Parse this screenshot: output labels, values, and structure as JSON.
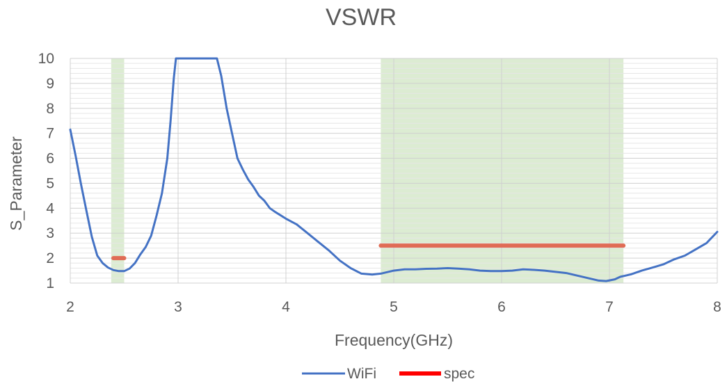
{
  "chart_data": {
    "type": "line",
    "title": "VSWR",
    "xlabel": "Frequency(GHz)",
    "ylabel": "S_Parameter",
    "xlim": [
      2,
      8
    ],
    "ylim": [
      1,
      10
    ],
    "x_ticks": [
      "2",
      "3",
      "4",
      "5",
      "6",
      "7",
      "8"
    ],
    "y_ticks": [
      "1",
      "2",
      "3",
      "4",
      "5",
      "6",
      "7",
      "8",
      "9",
      "10"
    ],
    "grid": true,
    "legend_position": "bottom",
    "shaded_bands": [
      [
        2.38,
        2.5
      ],
      [
        4.88,
        7.13
      ]
    ],
    "series": [
      {
        "name": "WiFi",
        "color": "#4472C4",
        "points": [
          [
            2.0,
            7.15
          ],
          [
            2.05,
            6.1
          ],
          [
            2.1,
            4.95
          ],
          [
            2.15,
            3.9
          ],
          [
            2.2,
            2.85
          ],
          [
            2.25,
            2.1
          ],
          [
            2.3,
            1.8
          ],
          [
            2.35,
            1.62
          ],
          [
            2.4,
            1.52
          ],
          [
            2.45,
            1.48
          ],
          [
            2.5,
            1.48
          ],
          [
            2.55,
            1.58
          ],
          [
            2.6,
            1.8
          ],
          [
            2.65,
            2.15
          ],
          [
            2.7,
            2.45
          ],
          [
            2.75,
            2.9
          ],
          [
            2.8,
            3.7
          ],
          [
            2.85,
            4.6
          ],
          [
            2.9,
            6.0
          ],
          [
            2.93,
            7.5
          ],
          [
            2.96,
            9.2
          ],
          [
            2.98,
            10.0
          ],
          [
            3.36,
            10.0
          ],
          [
            3.4,
            9.3
          ],
          [
            3.45,
            8.0
          ],
          [
            3.5,
            7.0
          ],
          [
            3.55,
            6.0
          ],
          [
            3.6,
            5.55
          ],
          [
            3.65,
            5.15
          ],
          [
            3.7,
            4.85
          ],
          [
            3.75,
            4.5
          ],
          [
            3.8,
            4.3
          ],
          [
            3.85,
            4.0
          ],
          [
            3.9,
            3.85
          ],
          [
            4.0,
            3.58
          ],
          [
            4.1,
            3.35
          ],
          [
            4.2,
            3.0
          ],
          [
            4.3,
            2.65
          ],
          [
            4.4,
            2.3
          ],
          [
            4.5,
            1.9
          ],
          [
            4.6,
            1.6
          ],
          [
            4.7,
            1.38
          ],
          [
            4.8,
            1.34
          ],
          [
            4.88,
            1.38
          ],
          [
            5.0,
            1.5
          ],
          [
            5.1,
            1.55
          ],
          [
            5.2,
            1.55
          ],
          [
            5.3,
            1.57
          ],
          [
            5.4,
            1.58
          ],
          [
            5.5,
            1.6
          ],
          [
            5.6,
            1.58
          ],
          [
            5.7,
            1.55
          ],
          [
            5.8,
            1.5
          ],
          [
            5.9,
            1.48
          ],
          [
            6.0,
            1.48
          ],
          [
            6.1,
            1.5
          ],
          [
            6.2,
            1.55
          ],
          [
            6.3,
            1.53
          ],
          [
            6.4,
            1.5
          ],
          [
            6.5,
            1.45
          ],
          [
            6.6,
            1.4
          ],
          [
            6.7,
            1.3
          ],
          [
            6.8,
            1.2
          ],
          [
            6.9,
            1.1
          ],
          [
            6.97,
            1.08
          ],
          [
            7.05,
            1.15
          ],
          [
            7.1,
            1.25
          ],
          [
            7.2,
            1.35
          ],
          [
            7.3,
            1.5
          ],
          [
            7.4,
            1.62
          ],
          [
            7.5,
            1.75
          ],
          [
            7.6,
            1.95
          ],
          [
            7.7,
            2.1
          ],
          [
            7.8,
            2.35
          ],
          [
            7.9,
            2.6
          ],
          [
            8.0,
            3.05
          ]
        ]
      },
      {
        "name": "spec",
        "color": "#E06C55",
        "legend_color": "#FF0000",
        "segments": [
          [
            [
              2.4,
              2.0
            ],
            [
              2.5,
              2.0
            ]
          ],
          [
            [
              4.88,
              2.5
            ],
            [
              7.13,
              2.5
            ]
          ]
        ]
      }
    ]
  }
}
